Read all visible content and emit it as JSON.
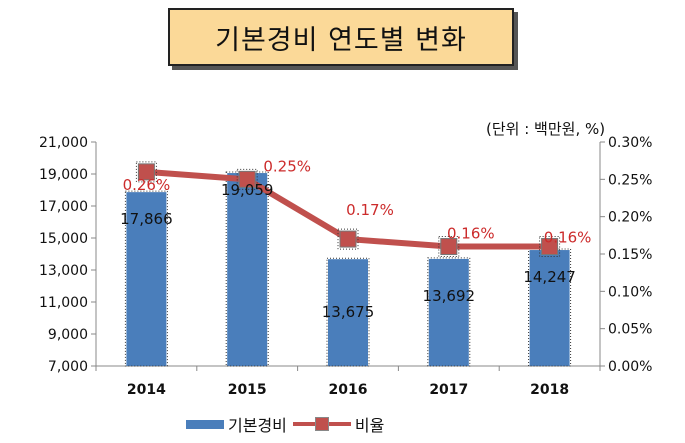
{
  "title": "기본경비 연도별 변화",
  "unit": "(단위 : 백만원, %)",
  "chart_data": {
    "type": "bar+line",
    "categories": [
      "2014",
      "2015",
      "2016",
      "2017",
      "2018"
    ],
    "series": [
      {
        "name": "기본경비",
        "axis": "left",
        "type": "bar",
        "values": [
          17866,
          19059,
          13675,
          13692,
          14247
        ],
        "labels": [
          "17,866",
          "19,059",
          "13,675",
          "13,692",
          "14,247"
        ],
        "color": "#4a7ebb"
      },
      {
        "name": "비율",
        "axis": "right",
        "type": "line",
        "values": [
          0.26,
          0.25,
          0.17,
          0.16,
          0.16
        ],
        "labels": [
          "0.26%",
          "0.25%",
          "0.17%",
          "0.16%",
          "0.16%"
        ],
        "color": "#c0504d"
      }
    ],
    "y_left": {
      "min": 7000,
      "max": 21000,
      "ticks": [
        "7,000",
        "9,000",
        "11,000",
        "13,000",
        "15,000",
        "17,000",
        "19,000",
        "21,000"
      ],
      "tick_values": [
        7000,
        9000,
        11000,
        13000,
        15000,
        17000,
        19000,
        21000
      ]
    },
    "y_right": {
      "min": 0,
      "max": 0.3,
      "ticks": [
        "0.00%",
        "0.05%",
        "0.10%",
        "0.15%",
        "0.20%",
        "0.25%",
        "0.30%"
      ],
      "tick_values": [
        0,
        0.05,
        0.1,
        0.15,
        0.2,
        0.25,
        0.3
      ]
    },
    "grid": false,
    "legend": "bottom"
  }
}
